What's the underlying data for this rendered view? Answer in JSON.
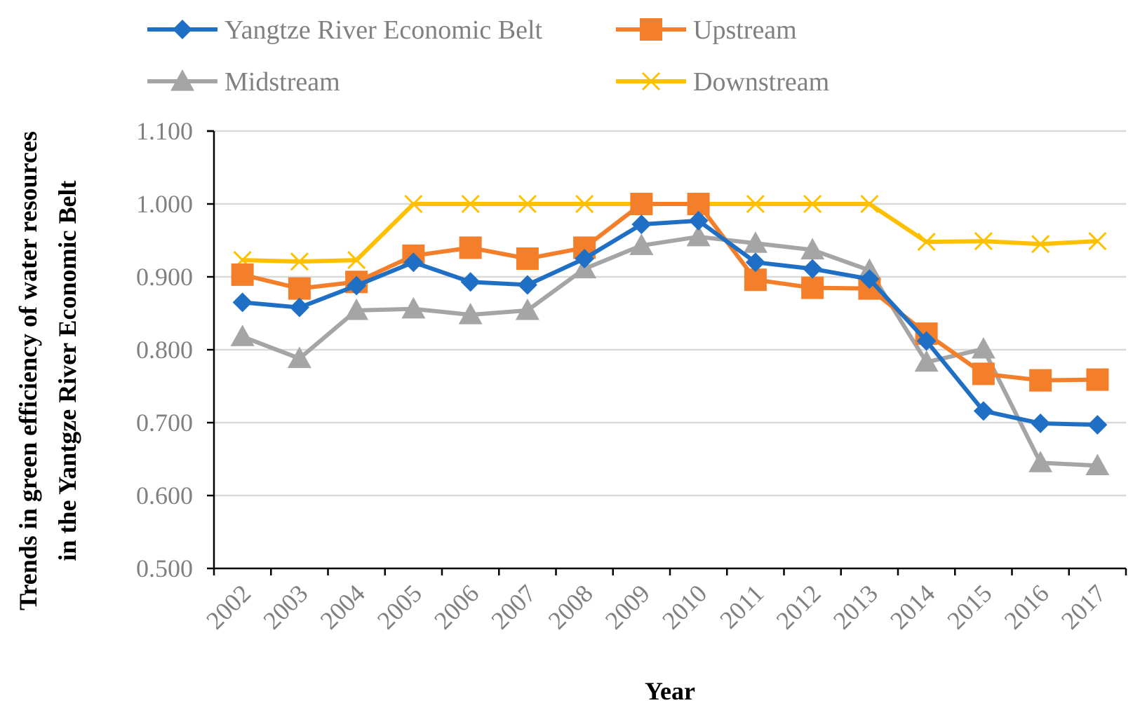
{
  "chart_data": {
    "type": "line",
    "title": "",
    "xlabel": "Year",
    "ylabel_lines": [
      "Trends in green efficiency of water resources",
      "in the Yantgze River Economic Belt"
    ],
    "categories": [
      "2002",
      "2003",
      "2004",
      "2005",
      "2006",
      "2007",
      "2008",
      "2009",
      "2010",
      "2011",
      "2012",
      "2013",
      "2014",
      "2015",
      "2016",
      "2017"
    ],
    "ylim": [
      0.5,
      1.1
    ],
    "yticks": [
      "0.500",
      "0.600",
      "0.700",
      "0.800",
      "0.900",
      "1.000",
      "1.100"
    ],
    "grid": true,
    "legend_position": "top",
    "series": [
      {
        "name": "Yangtze River Economic Belt",
        "color": "#1F6FC5",
        "marker": "diamond",
        "values": [
          0.865,
          0.858,
          0.888,
          0.92,
          0.893,
          0.889,
          0.925,
          0.972,
          0.977,
          0.92,
          0.911,
          0.897,
          0.812,
          0.716,
          0.699,
          0.697
        ]
      },
      {
        "name": "Upstream",
        "color": "#F47F2A",
        "marker": "square",
        "values": [
          0.903,
          0.884,
          0.893,
          0.929,
          0.94,
          0.925,
          0.94,
          1.0,
          1.0,
          0.896,
          0.885,
          0.884,
          0.822,
          0.767,
          0.758,
          0.759
        ]
      },
      {
        "name": "Midstream",
        "color": "#A5A5A5",
        "marker": "triangle",
        "values": [
          0.818,
          0.788,
          0.854,
          0.856,
          0.848,
          0.854,
          0.911,
          0.943,
          0.955,
          0.946,
          0.937,
          0.909,
          0.783,
          0.801,
          0.645,
          0.641
        ]
      },
      {
        "name": "Downstream",
        "color": "#FFC000",
        "marker": "x",
        "values": [
          0.923,
          0.921,
          0.923,
          1.0,
          1.0,
          1.0,
          1.0,
          1.0,
          1.0,
          1.0,
          1.0,
          1.0,
          0.948,
          0.949,
          0.945,
          0.949
        ]
      }
    ]
  }
}
